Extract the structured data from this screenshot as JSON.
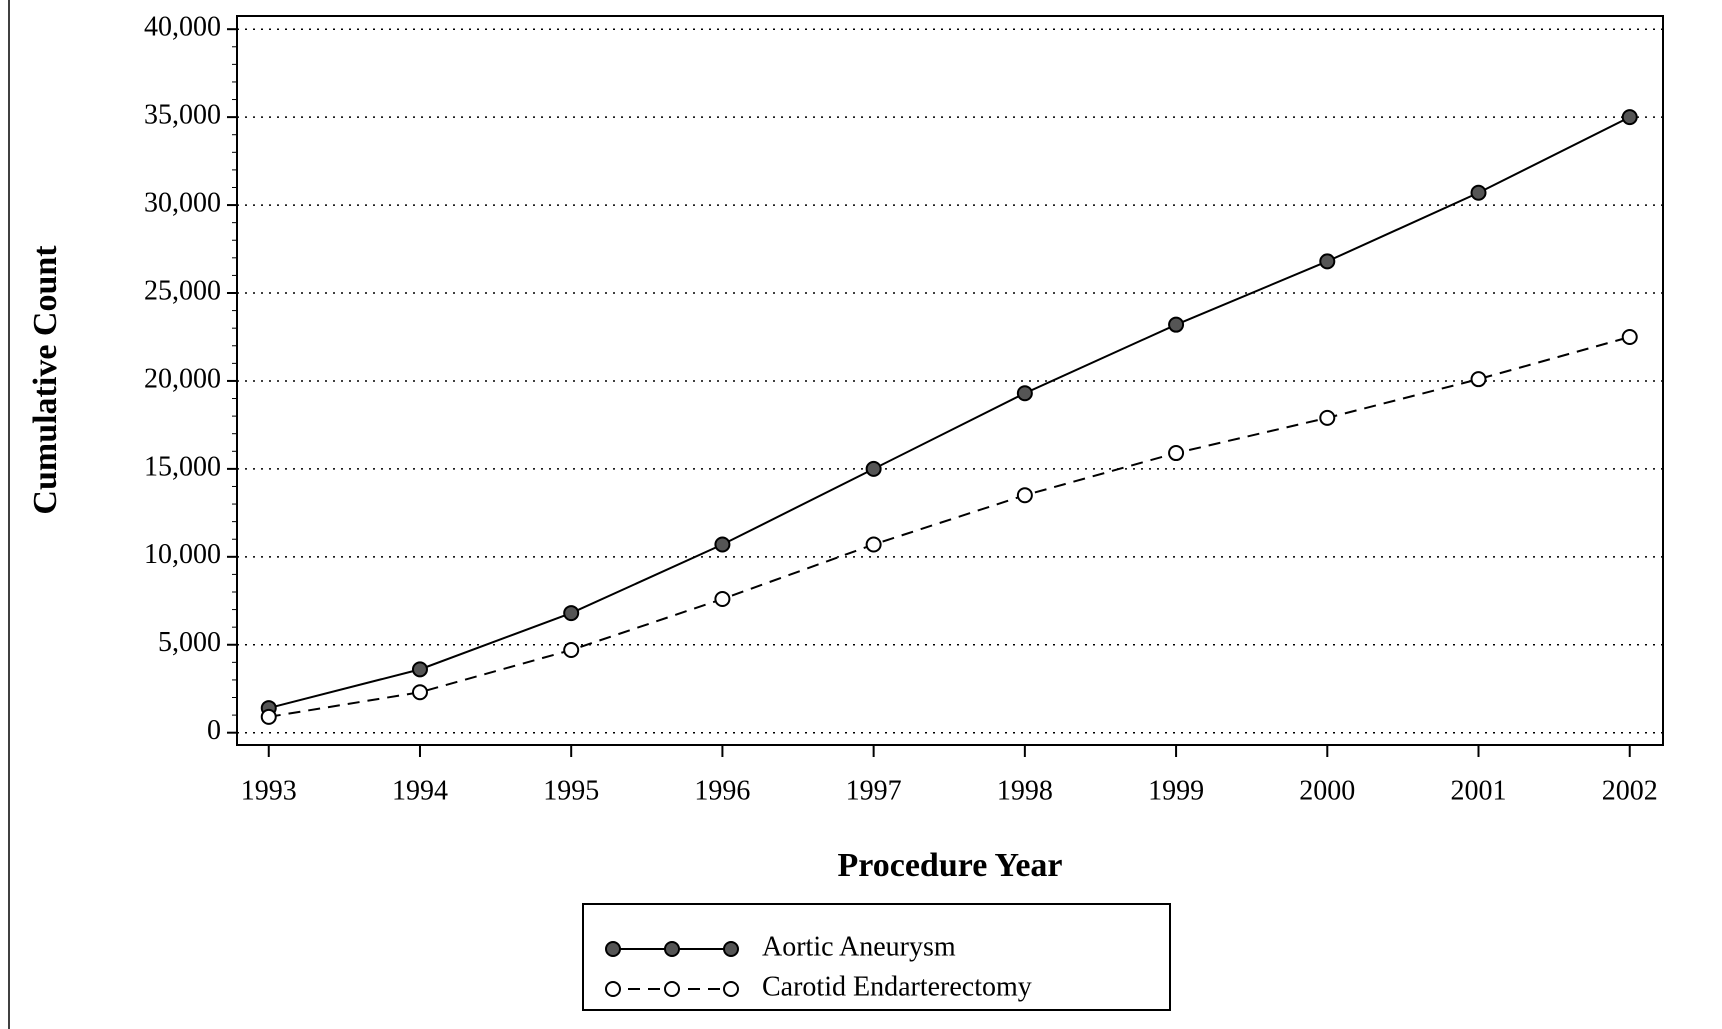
{
  "chart_data": {
    "type": "line",
    "x_label": "Procedure Year",
    "y_label": "Cumulative Count",
    "x": [
      1993,
      1994,
      1995,
      1996,
      1997,
      1998,
      1999,
      2000,
      2001,
      2002
    ],
    "series": [
      {
        "name": "Aortic Aneurysm",
        "color": "#000000",
        "line_style": "solid",
        "marker_fill": "#555555",
        "values": [
          1400,
          3600,
          6800,
          10700,
          15000,
          19300,
          23200,
          26800,
          30700,
          35000
        ]
      },
      {
        "name": "Carotid Endarterectomy",
        "color": "#000000",
        "line_style": "dashed",
        "marker_fill": "#ffffff",
        "values": [
          900,
          2300,
          4700,
          7600,
          10700,
          13500,
          15900,
          17900,
          20100,
          22500
        ]
      }
    ],
    "xlim": [
      1992.79,
      2002.22
    ],
    "xticks": [
      1993,
      1994,
      1995,
      1996,
      1997,
      1998,
      1999,
      2000,
      2001,
      2002
    ],
    "ylim": [
      -700,
      40750
    ],
    "yticks": [
      0,
      {
        "value": 5000,
        "label": "5,000"
      },
      {
        "value": 10000,
        "label": "10,000"
      },
      {
        "value": 15000,
        "label": "15,000"
      },
      {
        "value": 20000,
        "label": "20,000"
      },
      {
        "value": 25000,
        "label": "25,000"
      },
      {
        "value": 30000,
        "label": "30,000"
      },
      {
        "value": 35000,
        "label": "35,000"
      },
      {
        "value": 40000,
        "label": "40,000"
      }
    ],
    "grid": true,
    "legend_position": "bottom"
  }
}
